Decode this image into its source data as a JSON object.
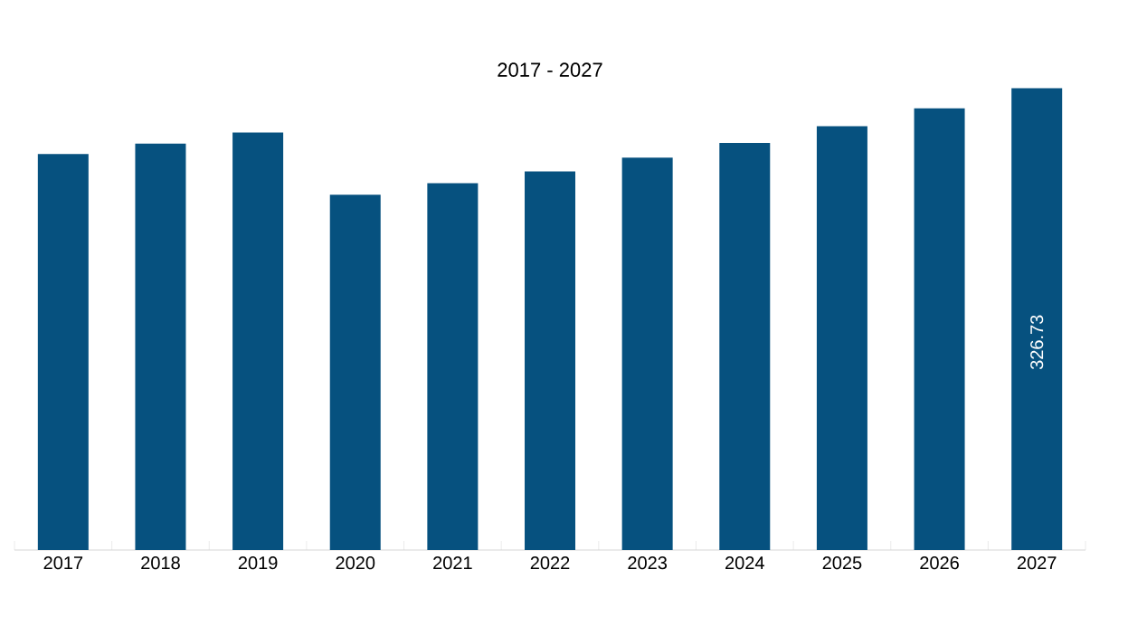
{
  "chart_data": {
    "type": "bar",
    "title": "2017 - 2027",
    "categories": [
      "2017",
      "2018",
      "2019",
      "2020",
      "2021",
      "2022",
      "2023",
      "2024",
      "2025",
      "2026",
      "2027"
    ],
    "values": [
      280.2,
      287.5,
      295.4,
      251.3,
      259.6,
      267.9,
      277.7,
      288.0,
      299.8,
      312.5,
      326.73
    ],
    "value_labels": [
      null,
      null,
      null,
      null,
      null,
      null,
      null,
      null,
      null,
      null,
      "326.73"
    ],
    "color": "#06517f"
  }
}
